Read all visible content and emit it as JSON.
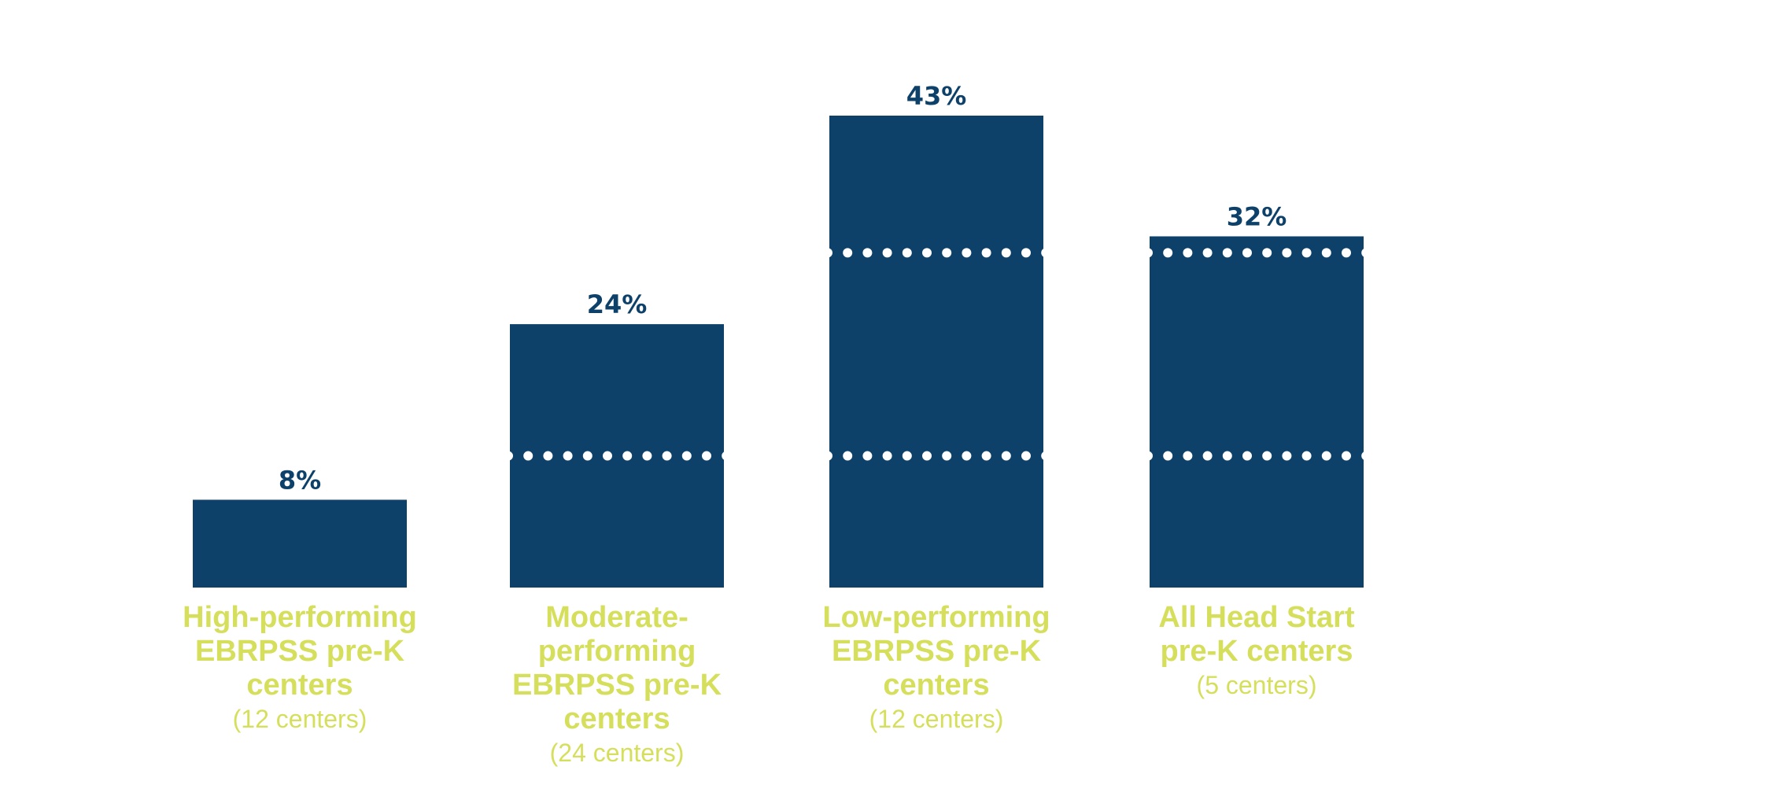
{
  "colors": {
    "bar": "#0d416a",
    "value_label": "#0d416a",
    "category_label": "#d5df5c",
    "dots": "#ffffff"
  },
  "chart_data": {
    "type": "bar",
    "categories": [
      "High-performing EBRPSS pre-K centers",
      "Moderate-performing EBRPSS pre-K centers",
      "Low-performing EBRPSS pre-K centers",
      "All Head Start pre-K centers"
    ],
    "category_lines": [
      [
        "High-performing",
        "EBRPSS pre-K",
        "centers"
      ],
      [
        "Moderate-",
        "performing",
        "EBRPSS pre-K",
        "centers"
      ],
      [
        "Low-performing",
        "EBRPSS pre-K",
        "centers"
      ],
      [
        "All Head Start",
        "pre-K centers"
      ]
    ],
    "category_notes": [
      "(12 centers)",
      "(24 centers)",
      "(12 centers)",
      "(5 centers)"
    ],
    "values": [
      8,
      24,
      43,
      32
    ],
    "value_labels": [
      "8%",
      "24%",
      "43%",
      "32%"
    ],
    "ylim": [
      0,
      43
    ],
    "reference_lines": [
      12,
      30.5
    ],
    "reference_line_style": "dotted",
    "title": "",
    "xlabel": "",
    "ylabel": ""
  }
}
